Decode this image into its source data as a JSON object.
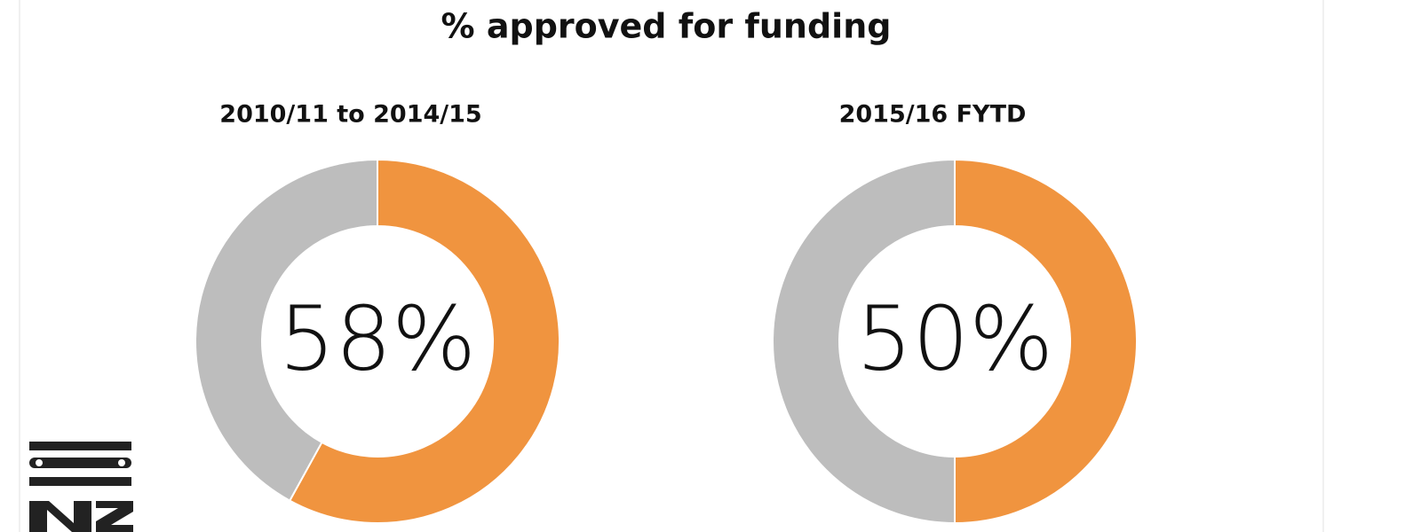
{
  "title": "% approved for funding",
  "chart_data": [
    {
      "type": "donut",
      "subtitle": "2010/11 to 2014/15",
      "values": [
        58,
        42
      ],
      "value_labels": [
        "58%",
        null
      ],
      "colors": [
        "#f0943f",
        "#bdbdbd"
      ]
    },
    {
      "type": "donut",
      "subtitle": "2015/16 FYTD",
      "values": [
        50,
        50
      ],
      "value_labels": [
        "50%",
        null
      ],
      "colors": [
        "#f0943f",
        "#bdbdbd"
      ]
    }
  ]
}
